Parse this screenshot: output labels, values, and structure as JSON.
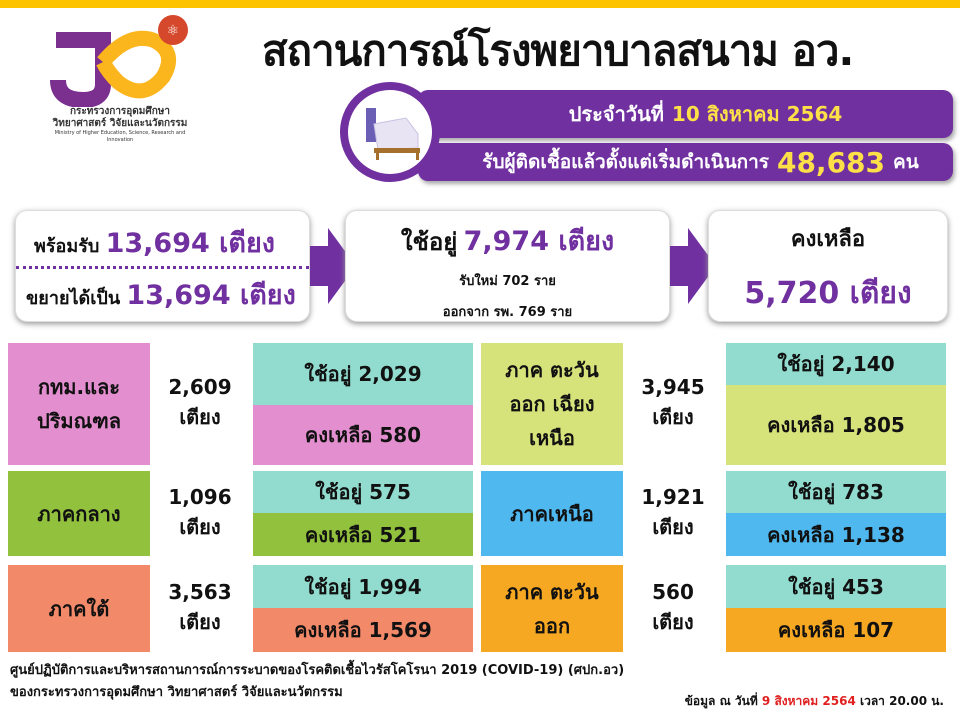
{
  "header": {
    "title": "สถานการณ์โรงพยาบาลสนาม อว.",
    "logo_text_1": "กระทรวงการอุดมศึกษา",
    "logo_text_2": "วิทยาศาสตร์ วิจัยและนวัตกรรม",
    "logo_text_en": "Ministry of Higher Education, Science, Research and Innovation"
  },
  "banner": {
    "date_label": "ประจำวันที่",
    "date": "10 สิงหาคม 2564",
    "total_label": "รับผู้ติดเชื้อแล้วตั้งแต่เริ่มดำเนินการ",
    "total": "48,683",
    "total_unit": "คน"
  },
  "summary": {
    "ready_label": "พร้อมรับ",
    "ready": "13,694 เตียง",
    "expand_label": "ขยายได้เป็น",
    "expand": "13,694 เตียง",
    "used_label": "ใช้อยู่",
    "used": "7,974 เตียง",
    "new_admit": "รับใหม่  702  ราย",
    "discharged": "ออกจาก รพ. 769 ราย",
    "remain_label": "คงเหลือ",
    "remain": "5,720 เตียง"
  },
  "regions": [
    {
      "name": "กทม.และ ปริมณฑล",
      "total": "2,609",
      "unit": "เตียง",
      "used": "ใช้อยู่  2,029",
      "remain": "คงเหลือ  580",
      "color": "#e38fcf"
    },
    {
      "name": "ภาคกลาง",
      "total": "1,096",
      "unit": "เตียง",
      "used": "ใช้อยู่  575",
      "remain": "คงเหลือ  521",
      "color": "#92c13e"
    },
    {
      "name": "ภาคใต้",
      "total": "3,563",
      "unit": "เตียง",
      "used": "ใช้อยู่  1,994",
      "remain": "คงเหลือ 1,569",
      "color": "#f28a6a"
    },
    {
      "name": "ภาค ตะวันออก เฉียงเหนือ",
      "total": "3,945",
      "unit": "เตียง",
      "used": "ใช้อยู่  2,140",
      "remain": "คงเหลือ  1,805",
      "color": "#d6e27a"
    },
    {
      "name": "ภาคเหนือ",
      "total": "1,921",
      "unit": "เตียง",
      "used": "ใช้อยู่  783",
      "remain": "คงเหลือ  1,138",
      "color": "#4fb8ef"
    },
    {
      "name": "ภาค ตะวันออก",
      "total": "560",
      "unit": "เตียง",
      "used": "ใช้อยู่  453",
      "remain": "คงเหลือ  107",
      "color": "#f7a823"
    }
  ],
  "footer": {
    "line1": "ศูนย์ปฏิบัติการและบริหารสถานการณ์การระบาดของโรคติดเชื้อไวรัสโคโรนา  2019 (COVID-19) (ศปก.อว)",
    "line2": "ของกระทรวงการอุดมศึกษา  วิทยาศาสตร์ วิจัยและนวัตกรรม",
    "update_label": "ข้อมูล ณ วันที่",
    "update_date": "9 สิงหาคม 2564",
    "time_label": "เวลา  20.00 น."
  },
  "colors": {
    "accent": "#7030a0",
    "top_bar": "#fdc300",
    "used_box": "#92dccf"
  }
}
